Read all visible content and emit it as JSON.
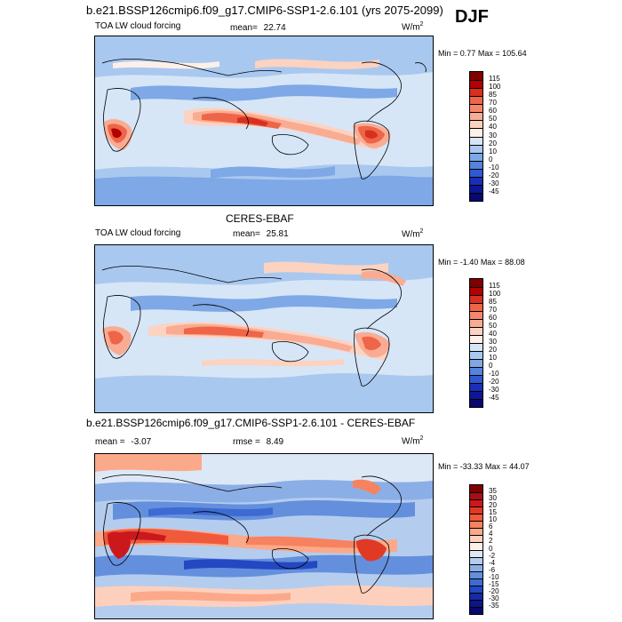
{
  "header": {
    "title": "b.e21.BSSP126cmip6.f09_g17.CMIP6-SSP1-2.6.101 (yrs 2075-2099)",
    "season": "DJF"
  },
  "panels": [
    {
      "title": "",
      "variable": "TOA LW cloud forcing",
      "stat1_label": "mean=",
      "stat1_value": "22.74",
      "stat2_label": "",
      "stat2_value": "",
      "units": "W/m",
      "units_exp": "2",
      "min_label": "Min =",
      "min_value": "0.77",
      "max_label": "Max =",
      "max_value": "105.64",
      "colorbar": {
        "levels": [
          "115",
          "100",
          "85",
          "70",
          "60",
          "50",
          "40",
          "30",
          "20",
          "10",
          "0",
          "-10",
          "-20",
          "-30",
          "-45"
        ],
        "colors": [
          "#7f0000",
          "#b30000",
          "#d7301f",
          "#ef6548",
          "#f4866b",
          "#f9ac93",
          "#fcd2c0",
          "#fdf0e8",
          "#d6e6f7",
          "#a9c8ef",
          "#7ea8e6",
          "#5683dc",
          "#2f59d0",
          "#1a2fb8",
          "#0d1796",
          "#08086e"
        ]
      }
    },
    {
      "title": "CERES-EBAF",
      "variable": "TOA LW cloud forcing",
      "stat1_label": "mean=",
      "stat1_value": "25.81",
      "stat2_label": "",
      "stat2_value": "",
      "units": "W/m",
      "units_exp": "2",
      "min_label": "Min =",
      "min_value": "-1.40",
      "max_label": "Max =",
      "max_value": "88.08",
      "colorbar": {
        "levels": [
          "115",
          "100",
          "85",
          "70",
          "60",
          "50",
          "40",
          "30",
          "20",
          "10",
          "0",
          "-10",
          "-20",
          "-30",
          "-45"
        ],
        "colors": [
          "#7f0000",
          "#b30000",
          "#d7301f",
          "#ef6548",
          "#f4866b",
          "#f9ac93",
          "#fcd2c0",
          "#fdf0e8",
          "#d6e6f7",
          "#a9c8ef",
          "#7ea8e6",
          "#5683dc",
          "#2f59d0",
          "#1a2fb8",
          "#0d1796",
          "#08086e"
        ]
      }
    },
    {
      "title": "b.e21.BSSP126cmip6.f09_g17.CMIP6-SSP1-2.6.101 - CERES-EBAF",
      "variable": "",
      "stat1_label": "mean =",
      "stat1_value": "-3.07",
      "stat2_label": "rmse =",
      "stat2_value": "8.49",
      "units": "W/m",
      "units_exp": "2",
      "min_label": "Min =",
      "min_value": "-33.33",
      "max_label": "Max =",
      "max_value": "44.07",
      "colorbar": {
        "levels": [
          "35",
          "30",
          "20",
          "15",
          "10",
          "6",
          "4",
          "2",
          "0",
          "-2",
          "-4",
          "-6",
          "-10",
          "-15",
          "-20",
          "-30",
          "-35"
        ],
        "colors": [
          "#7f0000",
          "#a50f15",
          "#cb181d",
          "#e03a24",
          "#f05a3a",
          "#f7825f",
          "#fba98a",
          "#fdd0bd",
          "#fdeee6",
          "#dce8f6",
          "#b4cdef",
          "#8caee6",
          "#648fdc",
          "#3d6bd2",
          "#2348c2",
          "#142aa6",
          "#0c168a",
          "#08086e"
        ]
      }
    }
  ]
}
